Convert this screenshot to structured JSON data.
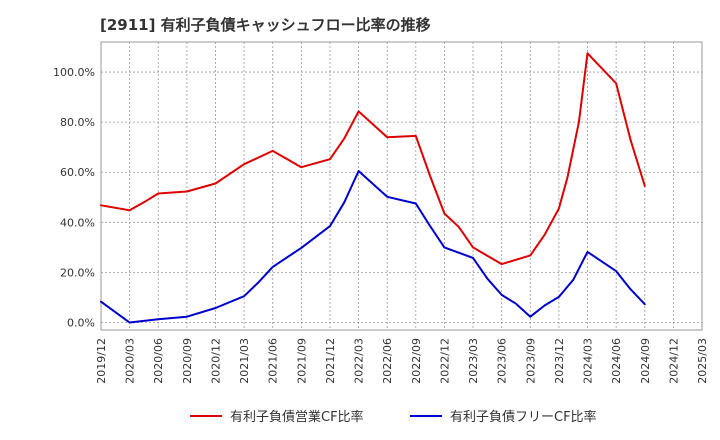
{
  "chart_data": {
    "type": "line",
    "title": "[2911]  有利子負債キャッシュフロー比率の推移",
    "xlabel": "",
    "ylabel": "",
    "x_ticks": [
      "2019/12",
      "2020/03",
      "2020/06",
      "2020/09",
      "2020/12",
      "2021/03",
      "2021/06",
      "2021/09",
      "2021/12",
      "2022/03",
      "2022/06",
      "2022/09",
      "2022/12",
      "2023/03",
      "2023/06",
      "2023/09",
      "2023/12",
      "2024/03",
      "2024/06",
      "2024/09",
      "2024/12",
      "2025/03"
    ],
    "y_ticks": [
      "0.0%",
      "20.0%",
      "40.0%",
      "60.0%",
      "80.0%",
      "100.0%"
    ],
    "ylim": [
      -3,
      112
    ],
    "xlim": [
      0,
      21
    ],
    "grid": true,
    "legend_position": "bottom",
    "series": [
      {
        "name": "有利子負債営業CF比率",
        "color": "#dd0000",
        "points": [
          [
            0,
            46.8
          ],
          [
            1,
            44.8
          ],
          [
            1.5,
            48
          ],
          [
            2,
            51.5
          ],
          [
            3,
            52.3
          ],
          [
            4,
            55.5
          ],
          [
            5,
            63.2
          ],
          [
            6,
            68.5
          ],
          [
            7,
            62
          ],
          [
            8,
            65.2
          ],
          [
            8.5,
            73.5
          ],
          [
            9,
            84.3
          ],
          [
            10,
            74
          ],
          [
            11,
            74.5
          ],
          [
            11.5,
            58.5
          ],
          [
            12,
            43.5
          ],
          [
            12.5,
            38.2
          ],
          [
            13,
            30
          ],
          [
            14,
            23.3
          ],
          [
            15,
            26.8
          ],
          [
            15.5,
            35
          ],
          [
            16,
            45.5
          ],
          [
            16.3,
            58
          ],
          [
            16.7,
            80
          ],
          [
            17,
            107.5
          ],
          [
            18,
            95.5
          ],
          [
            18.5,
            73
          ],
          [
            19,
            54.5
          ]
        ]
      },
      {
        "name": "有利子負債フリーCF比率",
        "color": "#0000cc",
        "points": [
          [
            0,
            8.3
          ],
          [
            1,
            0
          ],
          [
            2,
            1.3
          ],
          [
            3,
            2.3
          ],
          [
            4,
            5.8
          ],
          [
            5,
            10.5
          ],
          [
            5.5,
            16
          ],
          [
            6,
            22.2
          ],
          [
            7,
            29.8
          ],
          [
            8,
            38.5
          ],
          [
            8.5,
            48
          ],
          [
            9,
            60.5
          ],
          [
            10,
            50.2
          ],
          [
            11,
            47.5
          ],
          [
            11.5,
            38.5
          ],
          [
            12,
            30
          ],
          [
            13,
            25.8
          ],
          [
            13.5,
            17.5
          ],
          [
            14,
            11
          ],
          [
            14.5,
            7.5
          ],
          [
            15,
            2.3
          ],
          [
            15.5,
            6.8
          ],
          [
            16,
            10.2
          ],
          [
            16.5,
            17
          ],
          [
            17,
            28.2
          ],
          [
            18,
            20.5
          ],
          [
            18.5,
            13.3
          ],
          [
            19,
            7.3
          ]
        ]
      }
    ]
  }
}
